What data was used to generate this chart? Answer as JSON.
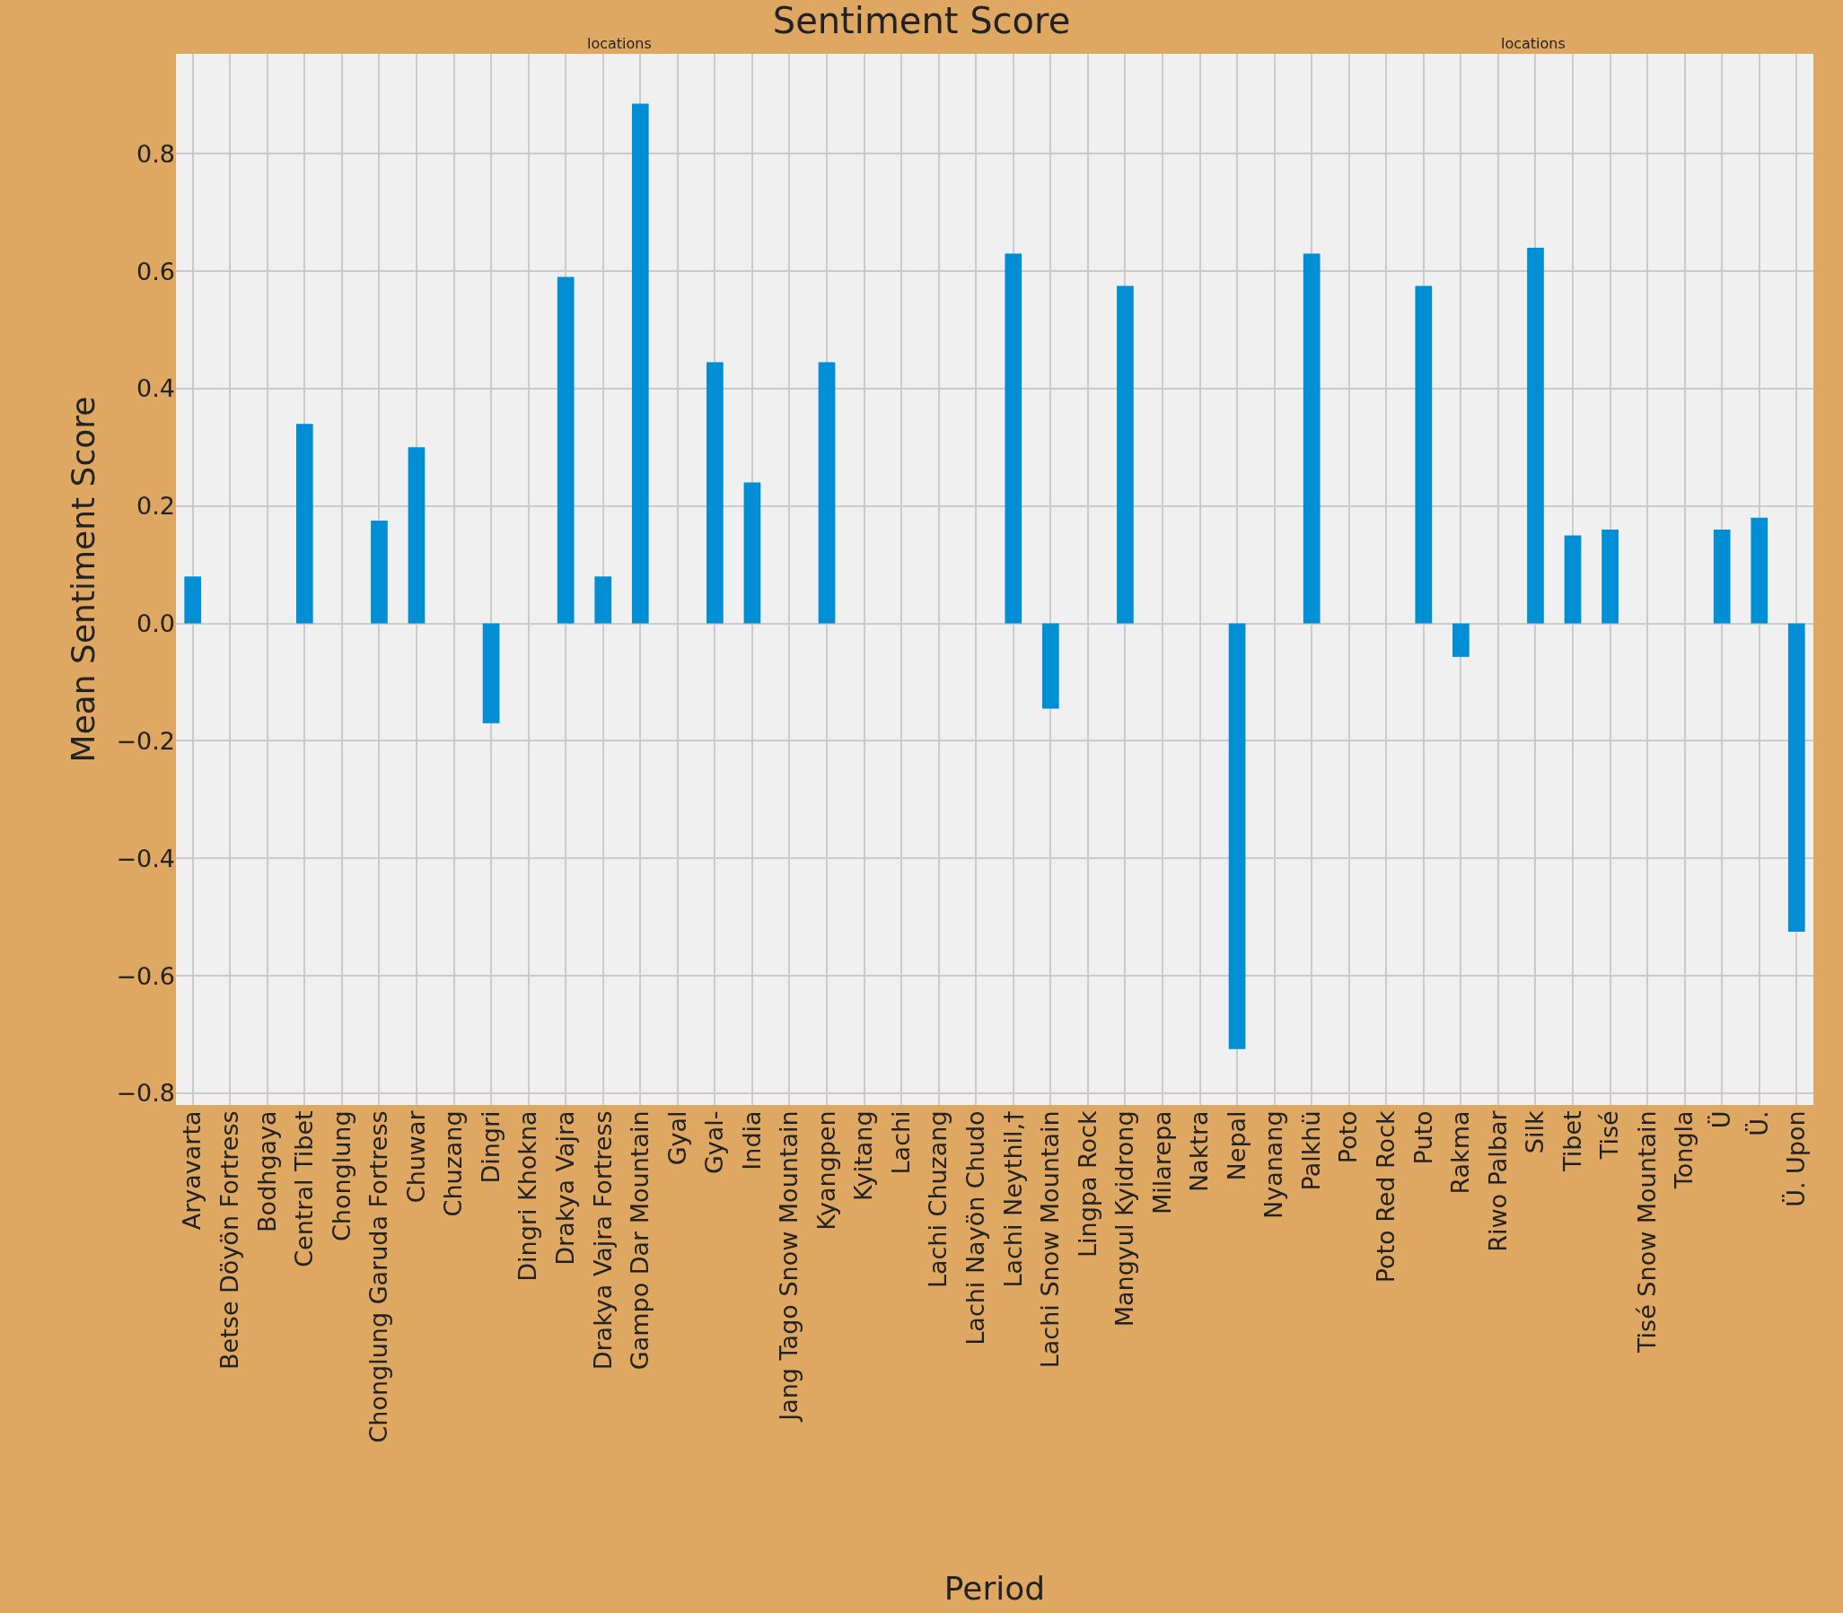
{
  "chart_data": {
    "type": "bar",
    "title": "Sentiment Score",
    "xlabel": "Period",
    "ylabel": "Mean Sentiment Score",
    "annotations": [
      "locations",
      "locations"
    ],
    "categories": [
      "Aryavarta",
      "Betse Döyön Fortress",
      "Bodhgaya",
      "Central Tibet",
      "Chonglung",
      "Chonglung Garuda Fortress",
      "Chuwar",
      "Chuzang",
      "Dingri",
      "Dingri Khokna",
      "Drakya Vajra",
      "Drakya Vajra Fortress",
      "Gampo Dar Mountain",
      "Gyal",
      "Gyal-",
      "India",
      "Jang Tago Snow Mountain",
      "Kyangpen",
      "Kyitang",
      "Lachi",
      "Lachi Chuzang",
      "Lachi Nayön Chudo",
      "Lachi Neythil,†",
      "Lachi Snow Mountain",
      "Lingpa Rock",
      "Mangyul Kyidrong",
      "Milarepa",
      "Naktra",
      "Nepal",
      "Nyanang",
      "Palkhü",
      "Poto",
      "Poto Red Rock",
      "Puto",
      "Rakma",
      "Riwo Palbar",
      "Silk",
      "Tibet",
      "Tisé",
      "Tisé Snow Mountain",
      "Tongla",
      "Ü",
      "Ü.",
      "Ü. Upon"
    ],
    "values": [
      0.08,
      0,
      0,
      0.34,
      0,
      0.175,
      0.3,
      0,
      -0.17,
      0,
      0.59,
      0.08,
      0.885,
      0,
      0.445,
      0.24,
      0,
      0.445,
      0,
      0,
      0,
      0,
      0.63,
      -0.145,
      0,
      0.575,
      0,
      0,
      -0.725,
      0,
      0.63,
      0,
      0,
      0.575,
      -0.057,
      0,
      0.64,
      0.15,
      0.16,
      0,
      0,
      0.16,
      0.18,
      -0.525
    ],
    "color": "#008fd5",
    "ylim": [
      -0.82,
      0.97
    ],
    "yticks": [
      {
        "value": -0.8,
        "label": "−0.8"
      },
      {
        "value": -0.6,
        "label": "−0.6"
      },
      {
        "value": -0.4,
        "label": "−0.4"
      },
      {
        "value": -0.2,
        "label": "−0.2"
      },
      {
        "value": 0.0,
        "label": "0.0"
      },
      {
        "value": 0.2,
        "label": "0.2"
      },
      {
        "value": 0.4,
        "label": "0.4"
      },
      {
        "value": 0.6,
        "label": "0.6"
      },
      {
        "value": 0.8,
        "label": "0.8"
      }
    ],
    "grid": true
  }
}
